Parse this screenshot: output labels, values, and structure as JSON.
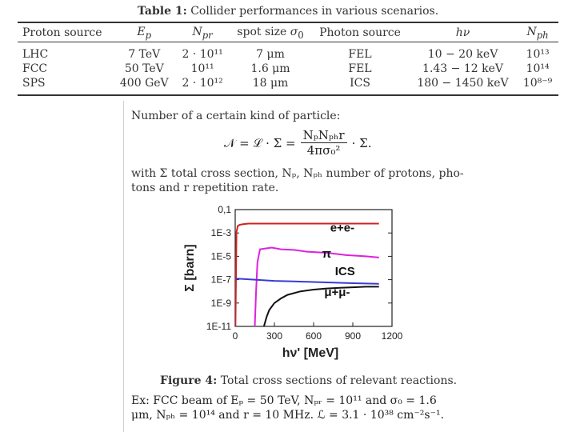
{
  "table": {
    "caption_label": "Table 1:",
    "caption_text": "Collider performances in various scenarios.",
    "headers": [
      "Proton source",
      "Ep",
      "Npr",
      "spot size σ0",
      "Photon source",
      "hν",
      "Nph"
    ],
    "rows": [
      [
        "LHC",
        "7 TeV",
        "2 · 10¹¹",
        "7 μm",
        "FEL",
        "10 − 20 keV",
        "10¹³"
      ],
      [
        "FCC",
        "50 TeV",
        "10¹¹",
        "1.6 μm",
        "FEL",
        "1.43 − 12 keV",
        "10¹⁴"
      ],
      [
        "SPS",
        "400 GeV",
        "2 · 10¹²",
        "18 μm",
        "ICS",
        "180 − 1450 keV",
        "10⁸⁻⁹"
      ]
    ]
  },
  "text": {
    "intro": "Number of a certain kind of particle:",
    "eq_lhs": "𝒩 = ℒ · Σ =",
    "eq_num": "NₚNₚₕr",
    "eq_den": "4πσ₀²",
    "eq_rhs": "· Σ.",
    "def_line1": "with Σ total cross section, Nₚ, Nₚₕ number of protons, pho-",
    "def_line2": "tons and r repetition rate.",
    "fig_label": "Figure 4:",
    "fig_text": "Total cross sections of relevant reactions.",
    "ex_line1": "Ex: FCC beam of Eₚ = 50 TeV, Nₚᵣ = 10¹¹ and σ₀ = 1.6",
    "ex_line2": "μm, Nₚₕ = 10¹⁴ and r = 10 MHz. ℒ = 3.1 · 10³⁸ cm⁻²s⁻¹."
  },
  "chart_data": {
    "type": "line",
    "title": "",
    "xlabel": "hν' [MeV]",
    "ylabel": "Σ [barn]",
    "xlim": [
      0,
      1200
    ],
    "ylim_exp": [
      -11,
      -1
    ],
    "y_scale": "log",
    "x_ticks": [
      "0",
      "300",
      "600",
      "900",
      "1200"
    ],
    "y_ticks": [
      "1E-11",
      "1E-9",
      "1E-7",
      "1E-5",
      "1E-3",
      "0,1"
    ],
    "grid": false,
    "series": [
      {
        "name": "e+e-",
        "color": "#d42020",
        "x": [
          2,
          10,
          20,
          35,
          60,
          100,
          200,
          400,
          700,
          1100
        ],
        "log10_y": [
          -11,
          -2.9,
          -2.4,
          -2.3,
          -2.25,
          -2.2,
          -2.2,
          -2.2,
          -2.2,
          -2.2
        ]
      },
      {
        "name": "π",
        "color": "#dd22dd",
        "x": [
          150,
          160,
          170,
          190,
          220,
          280,
          350,
          450,
          550,
          700,
          850,
          1000,
          1100
        ],
        "log10_y": [
          -11,
          -8,
          -5.5,
          -4.4,
          -4.35,
          -4.25,
          -4.4,
          -4.45,
          -4.6,
          -4.7,
          -4.9,
          -5.0,
          -5.1
        ]
      },
      {
        "name": "ICS",
        "color": "#3a3ad6",
        "x": [
          0,
          150,
          300,
          450,
          600,
          750,
          900,
          1100
        ],
        "log10_y": [
          -6.9,
          -7.0,
          -7.1,
          -7.15,
          -7.2,
          -7.25,
          -7.3,
          -7.35
        ]
      },
      {
        "name": "μ+μ-",
        "color": "#111111",
        "x": [
          220,
          240,
          260,
          300,
          350,
          400,
          500,
          600,
          700,
          800,
          900,
          1000,
          1100
        ],
        "log10_y": [
          -11,
          -10.2,
          -9.6,
          -9.0,
          -8.6,
          -8.3,
          -8.0,
          -7.85,
          -7.75,
          -7.7,
          -7.65,
          -7.6,
          -7.6
        ]
      }
    ],
    "annotations": [
      {
        "text": "e+e-",
        "x": 820,
        "log10_y": -2.9
      },
      {
        "text": "π",
        "x": 700,
        "log10_y": -5.1
      },
      {
        "text": "ICS",
        "x": 840,
        "log10_y": -6.6
      },
      {
        "text": "μ+μ-",
        "x": 780,
        "log10_y": -8.4
      }
    ]
  }
}
